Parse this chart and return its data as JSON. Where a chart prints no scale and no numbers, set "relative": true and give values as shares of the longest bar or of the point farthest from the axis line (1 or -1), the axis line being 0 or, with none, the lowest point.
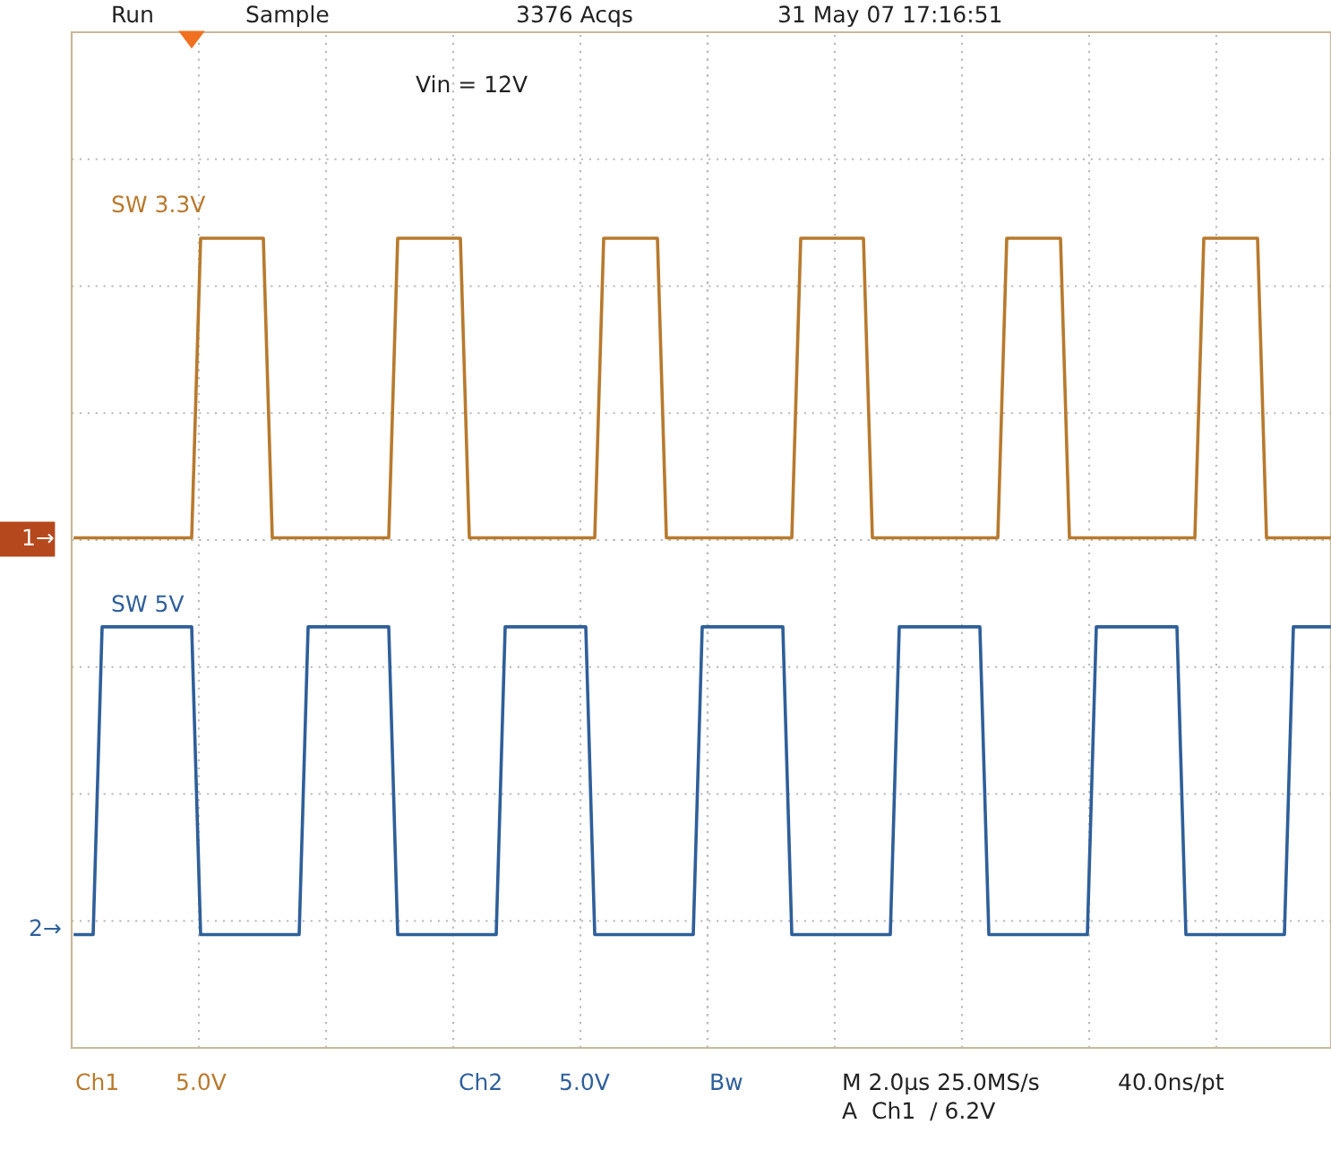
{
  "chart_data": {
    "type": "line",
    "relative": true,
    "grid": true,
    "legend": false,
    "marker": "none",
    "line_style": "solid",
    "categories": [
      null,
      null,
      null,
      null,
      null,
      null,
      null,
      null,
      null,
      null,
      null,
      null,
      null,
      null,
      null,
      null,
      null,
      null,
      null,
      null,
      null,
      null,
      null,
      null,
      null,
      null,
      null,
      null,
      null,
      null,
      null,
      null,
      null,
      null,
      null,
      null,
      null,
      null,
      null,
      null,
      null,
      null,
      null,
      null,
      null,
      null,
      null,
      null,
      null,
      null,
      null,
      null,
      null,
      null,
      null,
      null,
      null,
      null,
      null,
      null,
      null,
      null,
      null,
      null,
      null,
      null,
      null,
      null,
      null,
      null,
      null,
      null,
      null,
      null,
      null,
      null,
      null,
      null,
      null,
      null,
      null,
      null,
      null,
      null,
      null,
      null,
      null,
      null,
      null,
      null,
      null,
      null,
      null,
      null,
      null,
      null,
      null,
      null,
      null,
      null,
      null,
      null,
      null,
      null,
      null,
      null,
      null,
      null,
      null,
      null,
      null,
      null,
      null,
      null,
      null,
      null,
      null,
      null,
      null,
      null,
      null,
      null,
      null,
      null,
      null,
      null,
      null,
      null,
      null,
      null,
      null,
      null,
      null,
      null,
      null,
      null,
      null,
      null,
      null,
      null,
      null
    ],
    "series": [
      {
        "name": "SW 3.3V",
        "color": "#b87a2e",
        "values": [
          0.63,
          0.63,
          0.63,
          0.63,
          0.63,
          0.63,
          0.63,
          0.63,
          0.63,
          0.63,
          0.63,
          0.63,
          0.63,
          0.63,
          1,
          1,
          1,
          1,
          1,
          1,
          1,
          1,
          0.63,
          0.63,
          0.63,
          0.63,
          0.63,
          0.63,
          0.63,
          0.63,
          0.63,
          0.63,
          0.63,
          0.63,
          0.63,
          0.63,
          1,
          1,
          1,
          1,
          1,
          1,
          1,
          1,
          0.63,
          0.63,
          0.63,
          0.63,
          0.63,
          0.63,
          0.63,
          0.63,
          0.63,
          0.63,
          0.63,
          0.63,
          0.63,
          0.63,
          0.63,
          1,
          1,
          1,
          1,
          1,
          1,
          1,
          0.63,
          0.63,
          0.63,
          0.63,
          0.63,
          0.63,
          0.63,
          0.63,
          0.63,
          0.63,
          0.63,
          0.63,
          0.63,
          0.63,
          0.63,
          1,
          1,
          1,
          1,
          1,
          1,
          1,
          1,
          0.63,
          0.63,
          0.63,
          0.63,
          0.63,
          0.63,
          0.63,
          0.63,
          0.63,
          0.63,
          0.63,
          0.63,
          0.63,
          0.63,
          0.63,
          1,
          1,
          1,
          1,
          1,
          1,
          1,
          0.63,
          0.63,
          0.63,
          0.63,
          0.63,
          0.63,
          0.63,
          0.63,
          0.63,
          0.63,
          0.63,
          0.63,
          0.63,
          0.63,
          0.63,
          1,
          1,
          1,
          1,
          1,
          1,
          1,
          0.63,
          0.63,
          0.63,
          0.63,
          0.63,
          0.63,
          0.63,
          0.63
        ]
      },
      {
        "name": "SW 5V",
        "color": "#2f5f9a",
        "values": [
          0.14,
          0.14,
          0.14,
          0.52,
          0.52,
          0.52,
          0.52,
          0.52,
          0.52,
          0.52,
          0.52,
          0.52,
          0.52,
          0.52,
          0.14,
          0.14,
          0.14,
          0.14,
          0.14,
          0.14,
          0.14,
          0.14,
          0.14,
          0.14,
          0.14,
          0.14,
          0.52,
          0.52,
          0.52,
          0.52,
          0.52,
          0.52,
          0.52,
          0.52,
          0.52,
          0.52,
          0.14,
          0.14,
          0.14,
          0.14,
          0.14,
          0.14,
          0.14,
          0.14,
          0.14,
          0.14,
          0.14,
          0.14,
          0.52,
          0.52,
          0.52,
          0.52,
          0.52,
          0.52,
          0.52,
          0.52,
          0.52,
          0.52,
          0.14,
          0.14,
          0.14,
          0.14,
          0.14,
          0.14,
          0.14,
          0.14,
          0.14,
          0.14,
          0.14,
          0.14,
          0.52,
          0.52,
          0.52,
          0.52,
          0.52,
          0.52,
          0.52,
          0.52,
          0.52,
          0.52,
          0.14,
          0.14,
          0.14,
          0.14,
          0.14,
          0.14,
          0.14,
          0.14,
          0.14,
          0.14,
          0.14,
          0.14,
          0.52,
          0.52,
          0.52,
          0.52,
          0.52,
          0.52,
          0.52,
          0.52,
          0.52,
          0.52,
          0.14,
          0.14,
          0.14,
          0.14,
          0.14,
          0.14,
          0.14,
          0.14,
          0.14,
          0.14,
          0.14,
          0.14,
          0.52,
          0.52,
          0.52,
          0.52,
          0.52,
          0.52,
          0.52,
          0.52,
          0.52,
          0.52,
          0.14,
          0.14,
          0.14,
          0.14,
          0.14,
          0.14,
          0.14,
          0.14,
          0.14,
          0.14,
          0.14,
          0.14,
          0.52,
          0.52,
          0.52,
          0.52,
          0.52
        ]
      }
    ],
    "annotations": [
      "Run",
      "Sample",
      "3376 Acqs",
      "31 May 07 17:16:51",
      "Vin = 12V",
      "Ch1",
      "5.0V",
      "Ch2",
      "5.0V",
      "Bw",
      "M 2.0µs 25.0MS/s",
      "40.0ns/pt",
      "A  Ch1  / 6.2V",
      "1→",
      "2→"
    ]
  }
}
